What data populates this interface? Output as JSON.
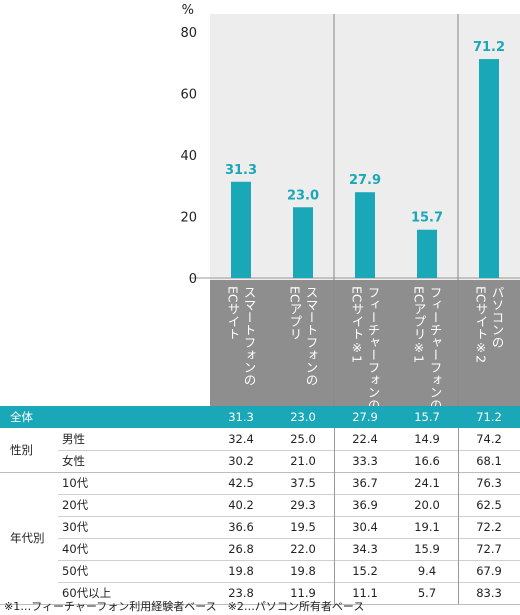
{
  "chart_data": {
    "type": "bar",
    "unit": "%",
    "ylim": [
      0,
      80
    ],
    "yticks": [
      0,
      20,
      40,
      60,
      80
    ],
    "grid": false,
    "color": "#1aa8b8",
    "categories": [
      [
        "スマートフォンの",
        "ECサイト"
      ],
      [
        "スマートフォンの",
        "ECアプリ"
      ],
      [
        "フィーチャーフォンの",
        "ECサイト※1"
      ],
      [
        "フィーチャーフォンの",
        "ECアプリ※1"
      ],
      [
        "パソコンの",
        "ECサイト※2"
      ]
    ],
    "values": [
      31.3,
      23.0,
      27.9,
      15.7,
      71.2
    ],
    "value_labels": [
      "31.3",
      "23.0",
      "27.9",
      "15.7",
      "71.2"
    ]
  },
  "table": {
    "total_row": {
      "label": "全体",
      "values": [
        "31.3",
        "23.0",
        "27.9",
        "15.7",
        "71.2"
      ]
    },
    "groups": [
      {
        "label": "性別",
        "rows": [
          {
            "label": "男性",
            "values": [
              "32.4",
              "25.0",
              "22.4",
              "14.9",
              "74.2"
            ]
          },
          {
            "label": "女性",
            "values": [
              "30.2",
              "21.0",
              "33.3",
              "16.6",
              "68.1"
            ]
          }
        ]
      },
      {
        "label": "年代別",
        "rows": [
          {
            "label": "10代",
            "values": [
              "42.5",
              "37.5",
              "36.7",
              "24.1",
              "76.3"
            ]
          },
          {
            "label": "20代",
            "values": [
              "40.2",
              "29.3",
              "36.9",
              "20.0",
              "62.5"
            ]
          },
          {
            "label": "30代",
            "values": [
              "36.6",
              "19.5",
              "30.4",
              "19.1",
              "72.2"
            ]
          },
          {
            "label": "40代",
            "values": [
              "26.8",
              "22.0",
              "34.3",
              "15.9",
              "72.7"
            ]
          },
          {
            "label": "50代",
            "values": [
              "19.8",
              "19.8",
              "15.2",
              "9.4",
              "67.9"
            ]
          },
          {
            "label": "60代以上",
            "values": [
              "23.8",
              "11.9",
              "11.1",
              "5.7",
              "83.3"
            ]
          }
        ]
      }
    ]
  },
  "footnote": "※1…フィーチャーフォン利用経験者ベース　※2…パソコン所有者ベース",
  "colors": {
    "bar": "#1aa8b8",
    "total_row_bg": "#1aa8b8",
    "category_bg": "#8e8e8e",
    "column_bg": "#ededed",
    "row_line": "#cfcfcf"
  }
}
